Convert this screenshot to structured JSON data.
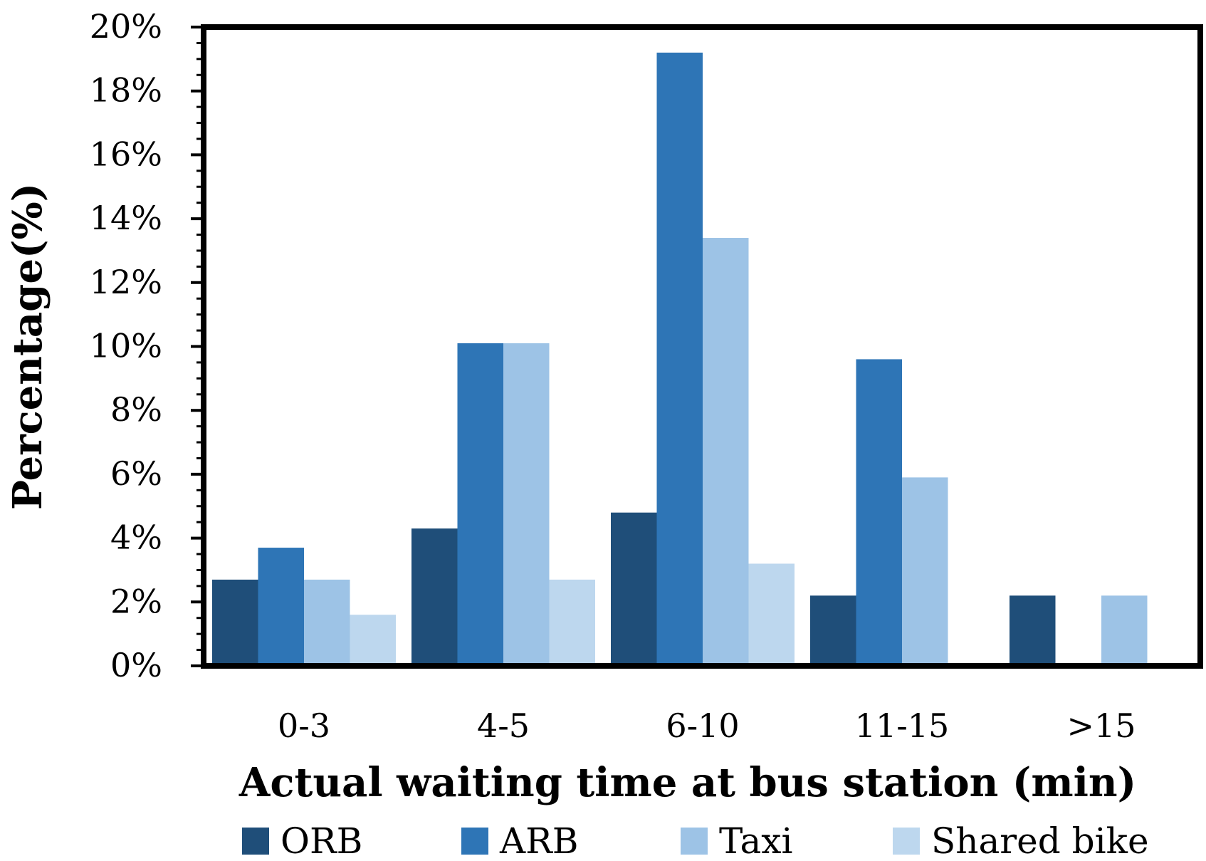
{
  "chart_data": {
    "type": "bar",
    "categories": [
      "0-3",
      "4-5",
      "6-10",
      "11-15",
      ">15"
    ],
    "series": [
      {
        "name": "ORB",
        "color": "#1f4e79",
        "values": [
          2.7,
          4.3,
          4.8,
          2.2,
          2.2
        ]
      },
      {
        "name": "ARB",
        "color": "#2e75b6",
        "values": [
          3.7,
          10.1,
          19.2,
          9.6,
          0
        ]
      },
      {
        "name": "Taxi",
        "color": "#9dc3e6",
        "values": [
          2.7,
          10.1,
          13.4,
          5.9,
          2.2
        ]
      },
      {
        "name": "Shared bike",
        "color": "#bdd7ee",
        "values": [
          1.6,
          2.7,
          3.2,
          0,
          0
        ]
      }
    ],
    "yticks": [
      "0%",
      "2%",
      "4%",
      "6%",
      "8%",
      "10%",
      "12%",
      "14%",
      "16%",
      "18%",
      "20%"
    ],
    "ylim": [
      0,
      20
    ],
    "xlabel": "Actual waiting time at bus station (min)",
    "ylabel": "Percentage(%)",
    "legend_position": "bottom",
    "grid": false
  }
}
